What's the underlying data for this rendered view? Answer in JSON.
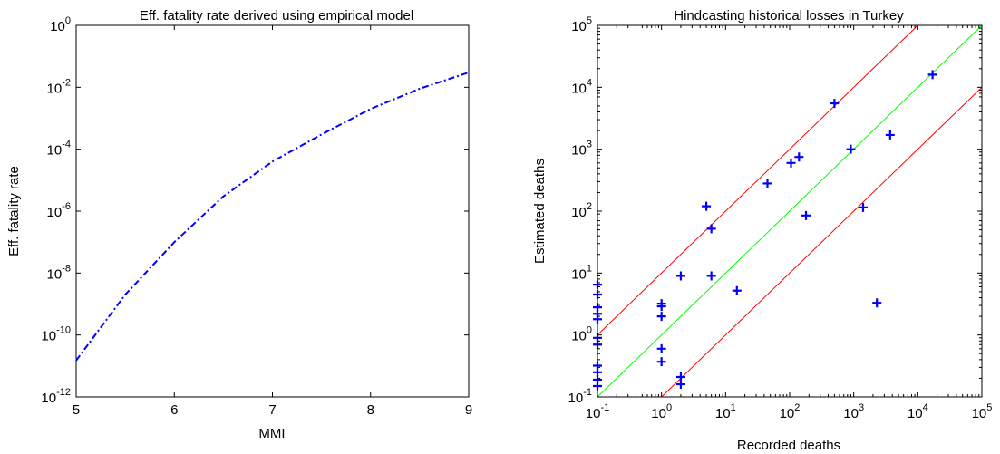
{
  "chart_data": [
    {
      "type": "line",
      "title": "Eff. fatality rate derived using empirical model",
      "xlabel": "MMI",
      "ylabel": "Eff. fatality rate",
      "xlim": [
        5,
        9
      ],
      "ylim": [
        1e-12,
        1
      ],
      "yscale": "log",
      "grid": false,
      "xticks": [
        "5",
        "6",
        "7",
        "8",
        "9"
      ],
      "yticks": [
        {
          "base": "10",
          "exp": "-12"
        },
        {
          "base": "10",
          "exp": "-10"
        },
        {
          "base": "10",
          "exp": "-8"
        },
        {
          "base": "10",
          "exp": "-6"
        },
        {
          "base": "10",
          "exp": "-4"
        },
        {
          "base": "10",
          "exp": "-2"
        },
        {
          "base": "10",
          "exp": "0"
        }
      ],
      "series": [
        {
          "color": "#0000ff",
          "line_style": "dash-dot",
          "x": [
            5.0,
            5.5,
            6.0,
            6.5,
            7.0,
            7.5,
            8.0,
            8.5,
            9.0
          ],
          "y": [
            1.5e-11,
            2e-09,
            1e-07,
            3e-06,
            4e-05,
            0.0003,
            0.002,
            0.009,
            0.03
          ]
        }
      ]
    },
    {
      "type": "scatter",
      "title": "Hindcasting historical losses in Turkey",
      "xlabel": "Recorded deaths",
      "ylabel": "Estimated deaths",
      "xlim": [
        0.1,
        100000
      ],
      "ylim": [
        0.1,
        100000
      ],
      "xscale": "log",
      "yscale": "log",
      "grid": false,
      "xticks": [
        {
          "base": "10",
          "exp": "-1"
        },
        {
          "base": "10",
          "exp": "0"
        },
        {
          "base": "10",
          "exp": "1"
        },
        {
          "base": "10",
          "exp": "2"
        },
        {
          "base": "10",
          "exp": "3"
        },
        {
          "base": "10",
          "exp": "4"
        },
        {
          "base": "10",
          "exp": "5"
        }
      ],
      "yticks": [
        {
          "base": "10",
          "exp": "-1"
        },
        {
          "base": "10",
          "exp": "0"
        },
        {
          "base": "10",
          "exp": "1"
        },
        {
          "base": "10",
          "exp": "2"
        },
        {
          "base": "10",
          "exp": "3"
        },
        {
          "base": "10",
          "exp": "4"
        },
        {
          "base": "10",
          "exp": "5"
        }
      ],
      "reference_lines": [
        {
          "color": "#00ff00",
          "factor": 1
        },
        {
          "color": "#ff0000",
          "factor": 10
        },
        {
          "color": "#ff0000",
          "factor": 0.1
        }
      ],
      "series": [
        {
          "color": "#0000ff",
          "marker": "plus",
          "points": [
            [
              0.1,
              6.5
            ],
            [
              0.1,
              4.5
            ],
            [
              0.1,
              2.8
            ],
            [
              0.1,
              2.2
            ],
            [
              0.1,
              1.8
            ],
            [
              0.1,
              0.9
            ],
            [
              0.1,
              0.7
            ],
            [
              0.1,
              0.32
            ],
            [
              0.1,
              0.25
            ],
            [
              0.1,
              0.19
            ],
            [
              0.1,
              0.15
            ],
            [
              1,
              3.2
            ],
            [
              1,
              2.9
            ],
            [
              1,
              2.0
            ],
            [
              1,
              0.6
            ],
            [
              1,
              0.37
            ],
            [
              2,
              9
            ],
            [
              2,
              0.21
            ],
            [
              2,
              0.16
            ],
            [
              5,
              120
            ],
            [
              6,
              52
            ],
            [
              6,
              9
            ],
            [
              15,
              5.2
            ],
            [
              45,
              280
            ],
            [
              105,
              600
            ],
            [
              140,
              750
            ],
            [
              180,
              85
            ],
            [
              500,
              5500
            ],
            [
              900,
              1000
            ],
            [
              1400,
              115
            ],
            [
              2300,
              3.3
            ],
            [
              3700,
              1700
            ],
            [
              17000,
              16000
            ]
          ]
        }
      ]
    }
  ]
}
